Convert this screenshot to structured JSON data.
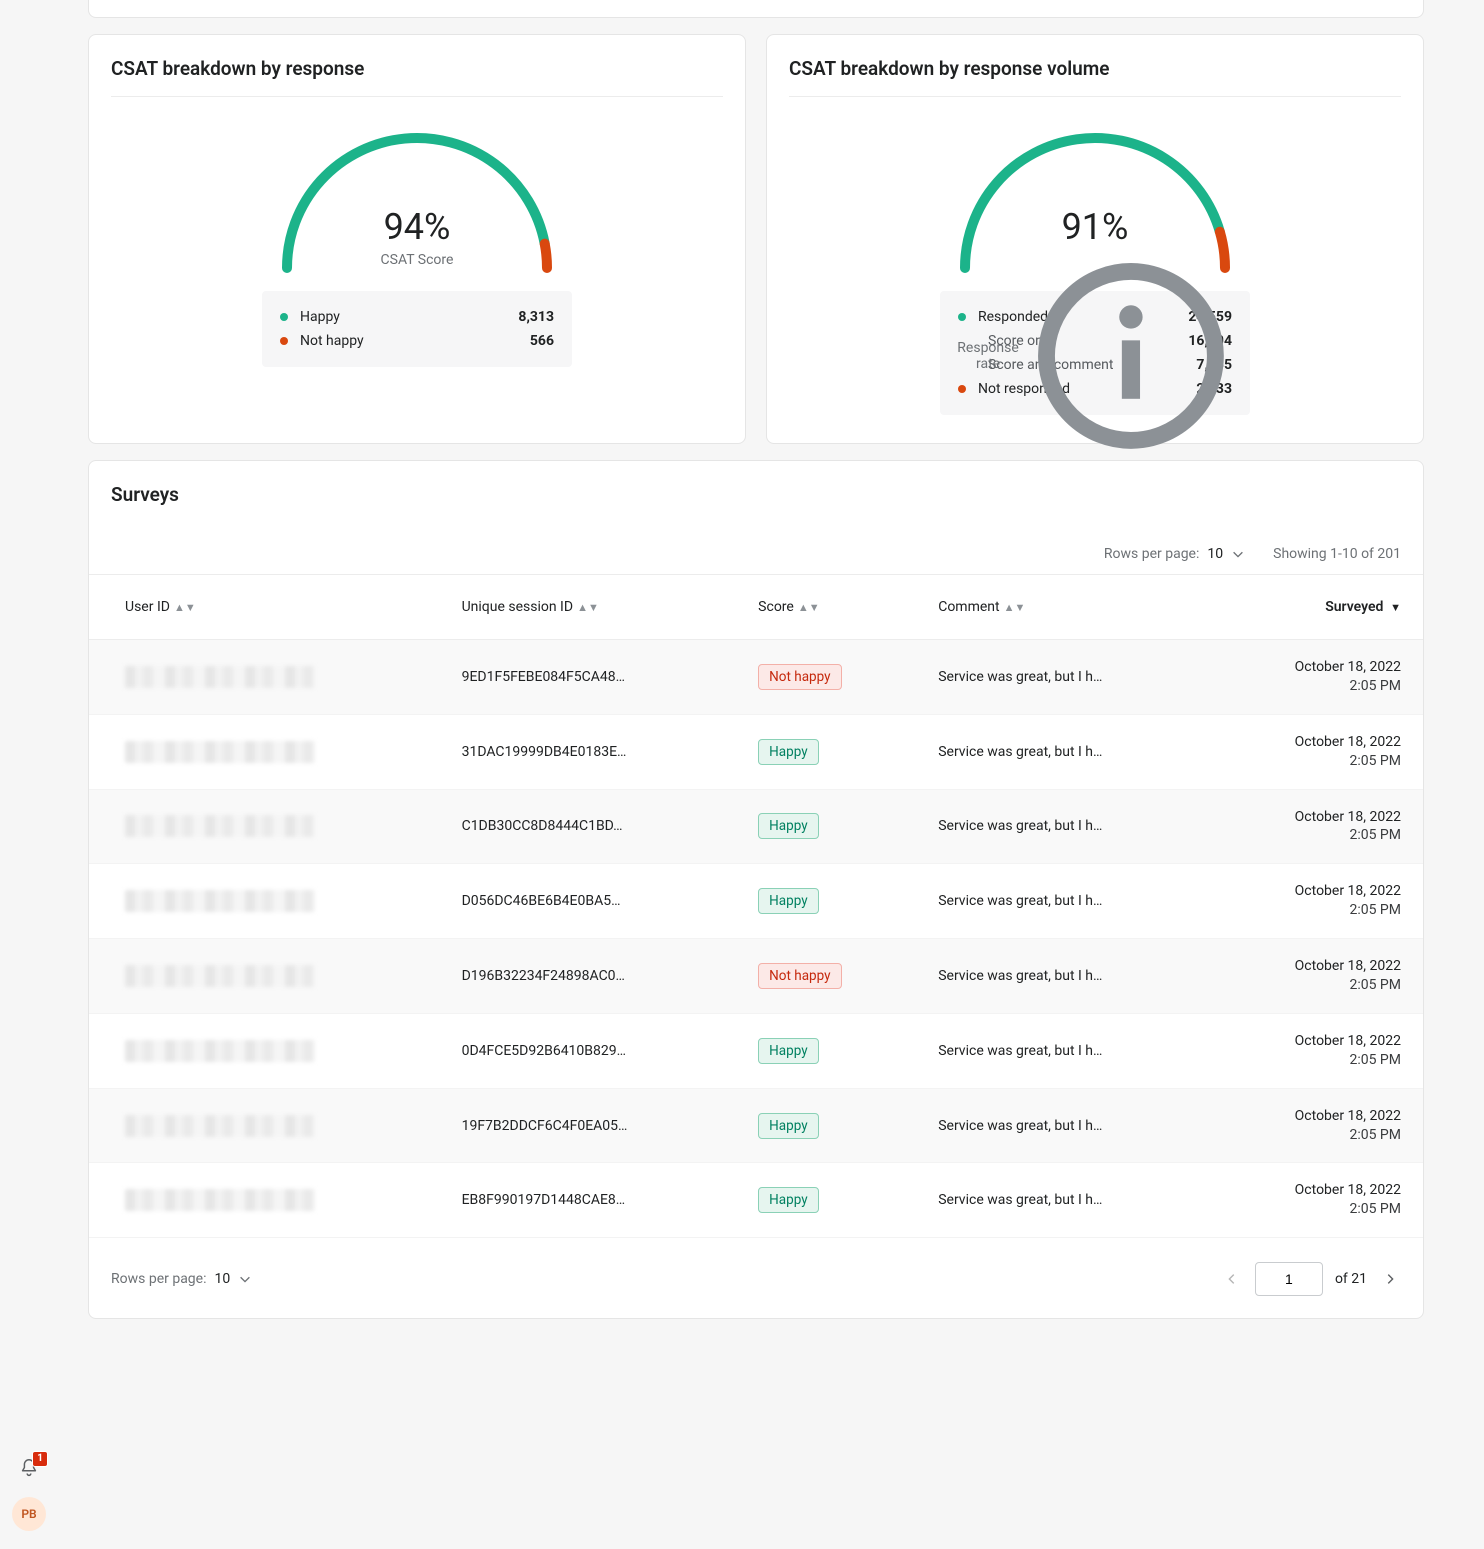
{
  "colors": {
    "green": "#1cb38a",
    "orange": "#d9480f",
    "bg_green_badge": "#e6f5ef",
    "border_green_badge": "#8ad1b6",
    "text_green_badge": "#008060",
    "bg_red_badge": "#fce9e7",
    "border_red_badge": "#f3b0a8",
    "text_red_badge": "#c5280c"
  },
  "csat_response": {
    "title": "CSAT breakdown by response",
    "type": "gauge",
    "percent_label": "94%",
    "percent_value": 94,
    "gauge_label": "CSAT Score",
    "stroke_width": 10,
    "legend": [
      {
        "label": "Happy",
        "value": "8,313",
        "dot": "#1cb38a"
      },
      {
        "label": "Not happy",
        "value": "566",
        "dot": "#d9480f"
      }
    ]
  },
  "csat_volume": {
    "title": "CSAT breakdown by response volume",
    "type": "gauge",
    "percent_label": "91%",
    "percent_value": 91,
    "gauge_label": "Response rate",
    "has_info_icon": true,
    "stroke_width": 10,
    "legend": [
      {
        "label": "Responded",
        "value": "24,559",
        "dot": "#1cb38a"
      },
      {
        "label": "Score only",
        "value": "16,904",
        "sub": true
      },
      {
        "label": "Score and comment",
        "value": "7,655",
        "sub": true
      },
      {
        "label": "Not responded",
        "value": "2,533",
        "dot": "#d9480f"
      }
    ]
  },
  "surveys": {
    "title": "Surveys",
    "rows_per_page_label": "Rows per page:",
    "rows_per_page_value": "10",
    "showing": "Showing 1-10 of 201",
    "columns": {
      "user_id": "User ID",
      "session_id": "Unique session ID",
      "score": "Score",
      "comment": "Comment",
      "surveyed": "Surveyed"
    },
    "rows": [
      {
        "session": "9ED1F5FEBE084F5CA48…",
        "score": "Not happy",
        "comment": "Service was great, but I h…",
        "date": "October 18, 2022",
        "time": "2:05 PM"
      },
      {
        "session": "31DAC19999DB4E0183E…",
        "score": "Happy",
        "comment": "Service was great, but I h…",
        "date": "October 18, 2022",
        "time": "2:05 PM"
      },
      {
        "session": "C1DB30CC8D8444C1BD…",
        "score": "Happy",
        "comment": "Service was great, but I h…",
        "date": "October 18, 2022",
        "time": "2:05 PM"
      },
      {
        "session": "D056DC46BE6B4E0BA5…",
        "score": "Happy",
        "comment": "Service was great, but I h…",
        "date": "October 18, 2022",
        "time": "2:05 PM"
      },
      {
        "session": "D196B32234F24898AC0…",
        "score": "Not happy",
        "comment": "Service was great, but I h…",
        "date": "October 18, 2022",
        "time": "2:05 PM"
      },
      {
        "session": "0D4FCE5D92B6410B829…",
        "score": "Happy",
        "comment": "Service was great, but I h…",
        "date": "October 18, 2022",
        "time": "2:05 PM"
      },
      {
        "session": "19F7B2DDCF6C4F0EA05…",
        "score": "Happy",
        "comment": "Service was great, but I h…",
        "date": "October 18, 2022",
        "time": "2:05 PM"
      },
      {
        "session": "EB8F990197D1448CAE8…",
        "score": "Happy",
        "comment": "Service was great, but I h…",
        "date": "October 18, 2022",
        "time": "2:05 PM"
      }
    ],
    "pager": {
      "current": "1",
      "of_label": "of 21"
    }
  },
  "floating": {
    "notification_count": "1",
    "avatar_initials": "PB"
  }
}
